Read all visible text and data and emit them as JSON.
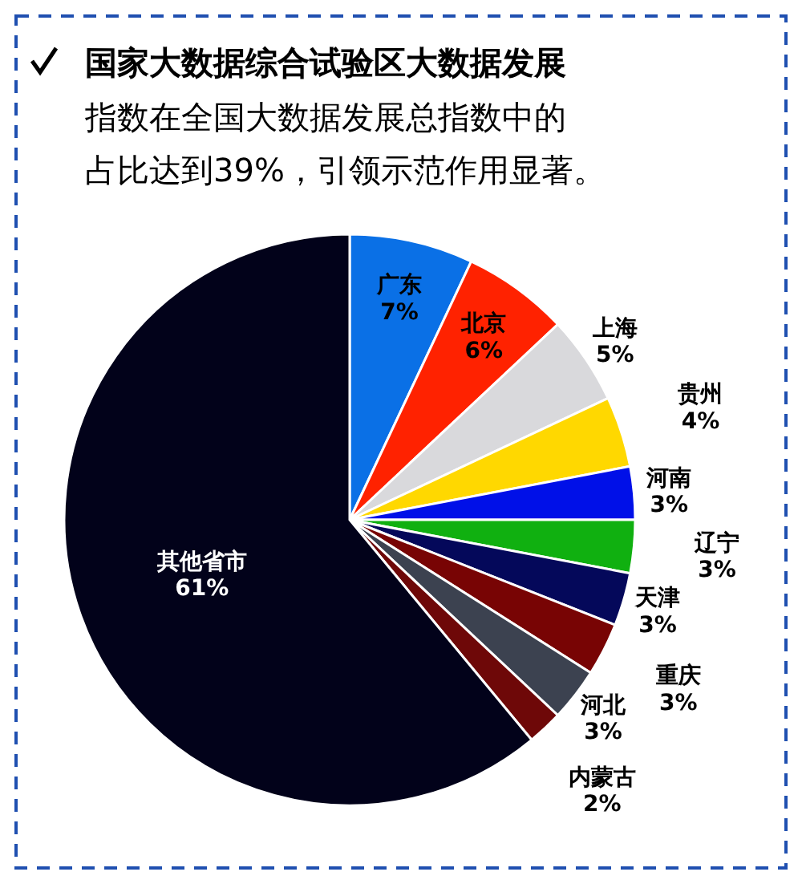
{
  "chart_data": {
    "type": "pie",
    "title": "国家大数据综合试验区大数据发展",
    "subtitle": "指数在全国大数据发展总指数中的占比达到39%，引领示范作用显著。",
    "categories": [
      "广东",
      "北京",
      "上海",
      "贵州",
      "河南",
      "辽宁",
      "天津",
      "重庆",
      "河北",
      "内蒙古",
      "其他省市"
    ],
    "values": [
      7,
      6,
      5,
      4,
      3,
      3,
      3,
      3,
      3,
      2,
      61
    ],
    "colors": [
      "#0a70e6",
      "#ff2200",
      "#d9d9dc",
      "#ffd800",
      "#0010e8",
      "#10b010",
      "#04085a",
      "#780404",
      "#3c4250",
      "#6e0808",
      "#02021a"
    ],
    "value_labels": [
      "7%",
      "6%",
      "5%",
      "4%",
      "3%",
      "3%",
      "3%",
      "3%",
      "3%",
      "2%",
      "61%"
    ]
  }
}
